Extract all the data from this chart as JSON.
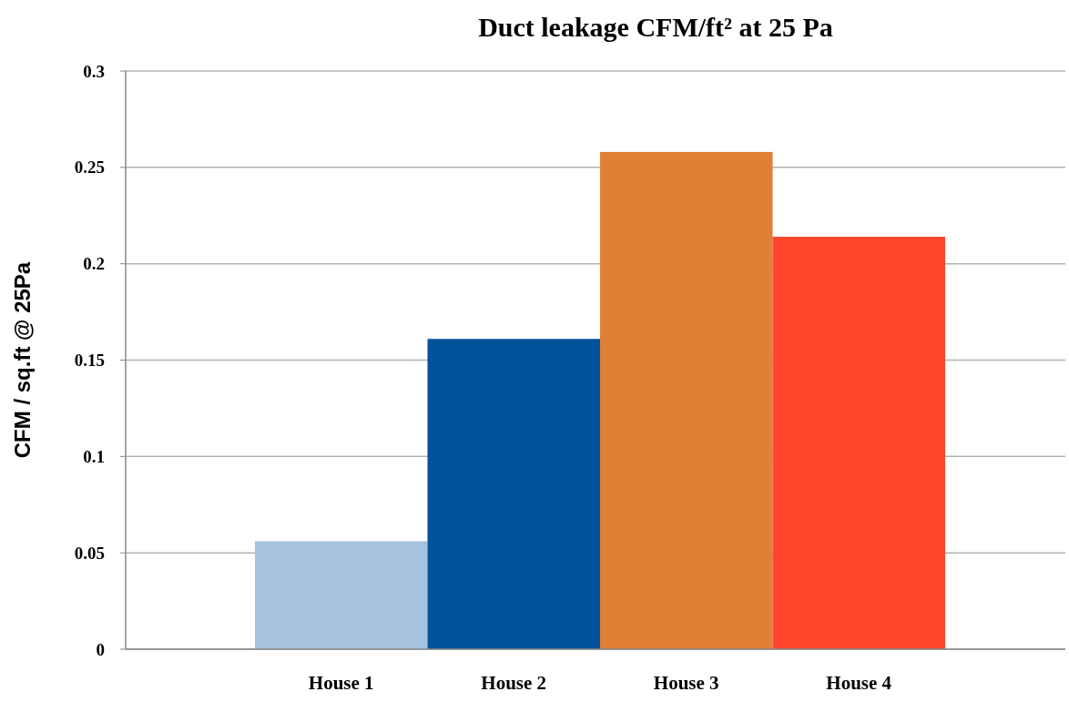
{
  "chart_data": {
    "type": "bar",
    "title": "Duct leakage  CFM/ft² at 25 Pa",
    "ylabel": "CFM / sq.ft @ 25Pa",
    "categories": [
      "House 1",
      "House 2",
      "House 3",
      "House 4"
    ],
    "values": [
      0.056,
      0.161,
      0.258,
      0.214
    ],
    "colors": [
      "#a7c2dc",
      "#00529b",
      "#e07f35",
      "#ff462c"
    ],
    "ylim": [
      0,
      0.3
    ],
    "yticks": [
      0,
      0.05,
      0.1,
      0.15,
      0.2,
      0.25,
      0.3
    ],
    "grid": "y"
  }
}
